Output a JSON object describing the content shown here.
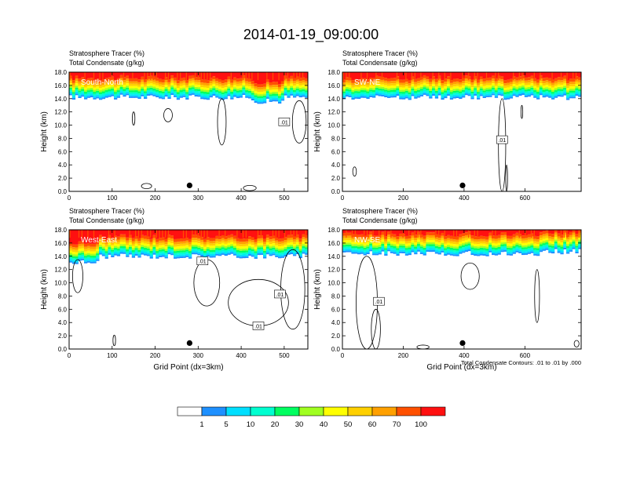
{
  "title": "2014-01-19_09:00:00",
  "colors": {
    "bands": [
      "#ffffff",
      "#1e90ff",
      "#00dfff",
      "#00ffd0",
      "#00ff60",
      "#a0ff20",
      "#ffff00",
      "#ffd000",
      "#ffa000",
      "#ff5000",
      "#ff1010"
    ]
  },
  "chart_data": [
    {
      "type": "contour",
      "panel": "South-North",
      "title_lines": [
        "Stratosphere Tracer   (%)",
        "Total Condensate   (g/kg)"
      ],
      "ylabel": "Height (km)",
      "xlabel": "",
      "xlim": [
        0,
        555
      ],
      "ylim": [
        0,
        18
      ],
      "xticks": [
        0,
        100,
        200,
        300,
        400,
        500
      ],
      "yticks": [
        "0.0",
        "2.0",
        "4.0",
        "6.0",
        "8.0",
        "10.0",
        "12.0",
        "14.0",
        "16.0",
        "18.0"
      ],
      "tracer_base_km": 14.2,
      "contour_labels": [
        ".01"
      ],
      "marker_x": 280
    },
    {
      "type": "contour",
      "panel": "SW-NE",
      "title_lines": [
        "Stratosphere Tracer   (%)",
        "Total Condensate   (g/kg)"
      ],
      "ylabel": "Height (km)",
      "xlabel": "",
      "xlim": [
        0,
        785
      ],
      "ylim": [
        0,
        18
      ],
      "xticks": [
        0,
        200,
        400,
        600
      ],
      "yticks": [
        "0.0",
        "2.0",
        "4.0",
        "6.0",
        "8.0",
        "10.0",
        "12.0",
        "14.0",
        "16.0",
        "18.0"
      ],
      "tracer_base_km": 14.2,
      "contour_labels": [
        ".01"
      ],
      "marker_x": 395
    },
    {
      "type": "contour",
      "panel": "West-East",
      "title_lines": [
        "Stratosphere Tracer   (%)",
        "Total Condensate   (g/kg)"
      ],
      "ylabel": "Height (km)",
      "xlabel": "Grid Point (dx=3km)",
      "xlim": [
        0,
        555
      ],
      "ylim": [
        0,
        18
      ],
      "xticks": [
        0,
        100,
        200,
        300,
        400,
        500
      ],
      "yticks": [
        "0.0",
        "2.0",
        "4.0",
        "6.0",
        "8.0",
        "10.0",
        "12.0",
        "14.0",
        "16.0",
        "18.0"
      ],
      "tracer_base_km": 14.0,
      "contour_labels": [
        ".01",
        ".01",
        ".01"
      ],
      "marker_x": 280
    },
    {
      "type": "contour",
      "panel": "NW-SE",
      "title_lines": [
        "Stratosphere Tracer   (%)",
        "Total Condensate   (g/kg)"
      ],
      "ylabel": "Height (km)",
      "xlabel": "Grid Point (dx=3km)",
      "xlim": [
        0,
        785
      ],
      "ylim": [
        0,
        18
      ],
      "xticks": [
        0,
        200,
        400,
        600
      ],
      "yticks": [
        "0.0",
        "2.0",
        "4.0",
        "6.0",
        "8.0",
        "10.0",
        "12.0",
        "14.0",
        "16.0",
        "18.0"
      ],
      "tracer_base_km": 14.4,
      "contour_labels": [
        ".01"
      ],
      "marker_x": 395,
      "note": "Total Condensate Contours: .01 to .01 by .000"
    }
  ],
  "colorbar": {
    "labels": [
      "1",
      "5",
      "10",
      "20",
      "30",
      "40",
      "50",
      "60",
      "70",
      "100"
    ]
  }
}
